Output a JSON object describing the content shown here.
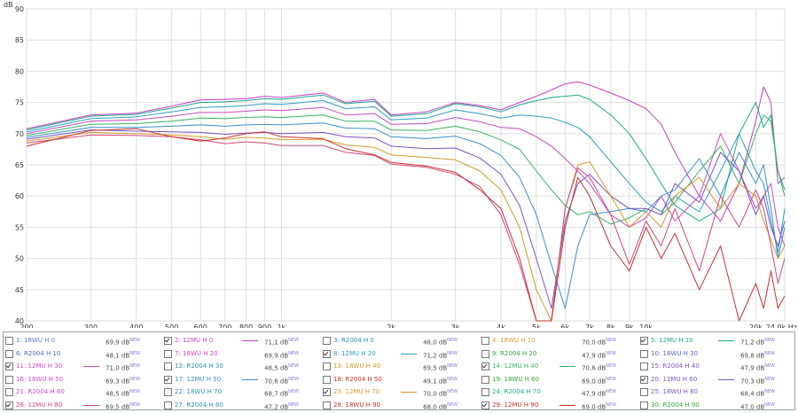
{
  "chart_data": {
    "type": "line",
    "ylabel": "dB",
    "xunit": "Hz",
    "xscale": "log",
    "xlim": [
      200,
      24000
    ],
    "ylim": [
      40,
      90
    ],
    "x_ticks": [
      {
        "value": 200,
        "label": "200"
      },
      {
        "value": 300,
        "label": "300"
      },
      {
        "value": 400,
        "label": "400"
      },
      {
        "value": 500,
        "label": "500"
      },
      {
        "value": 600,
        "label": "600"
      },
      {
        "value": 700,
        "label": "700"
      },
      {
        "value": 800,
        "label": "800"
      },
      {
        "value": 900,
        "label": "900"
      },
      {
        "value": 1000,
        "label": "1k"
      },
      {
        "value": 2000,
        "label": "2k"
      },
      {
        "value": 3000,
        "label": "3k"
      },
      {
        "value": 4000,
        "label": "4k"
      },
      {
        "value": 5000,
        "label": "5k"
      },
      {
        "value": 6000,
        "label": "6k"
      },
      {
        "value": 7000,
        "label": "7k"
      },
      {
        "value": 8000,
        "label": "8k"
      },
      {
        "value": 9000,
        "label": "9k"
      },
      {
        "value": 10000,
        "label": "10k"
      },
      {
        "value": 20000,
        "label": "20k"
      },
      {
        "value": 24000,
        "label": "24,0k Hz"
      }
    ],
    "y_ticks": [
      {
        "value": 40,
        "label": "40"
      },
      {
        "value": 45,
        "label": "45"
      },
      {
        "value": 50,
        "label": "50"
      },
      {
        "value": 55,
        "label": "55"
      },
      {
        "value": 60,
        "label": "60"
      },
      {
        "value": 65,
        "label": "65"
      },
      {
        "value": 70,
        "label": "70"
      },
      {
        "value": 75,
        "label": "75"
      },
      {
        "value": 80,
        "label": "80"
      },
      {
        "value": 85,
        "label": "85"
      },
      {
        "value": 90,
        "label": "90"
      }
    ],
    "grid": true,
    "series": [
      {
        "name": "2: 12MU H 0",
        "color": "#c53dc5",
        "x": [
          200,
          300,
          400,
          500,
          600,
          700,
          800,
          900,
          1000,
          1300,
          1500,
          1800,
          2000,
          2500,
          3000,
          3500,
          4000,
          4500,
          5000,
          5500,
          6000,
          6500,
          7000,
          8000,
          9000,
          10000,
          11000,
          12000,
          14000,
          16000,
          18000,
          20000,
          21000,
          22000,
          23000,
          24000
        ],
        "y": [
          70.8,
          73.0,
          73.3,
          74.4,
          75.4,
          75.5,
          75.6,
          76.0,
          75.8,
          76.5,
          75.0,
          75.5,
          73.0,
          73.5,
          75.0,
          74.5,
          73.8,
          75.0,
          76.0,
          77.0,
          78.0,
          78.3,
          77.8,
          76.5,
          75.3,
          74.0,
          71.5,
          67.0,
          60.0,
          56.0,
          62.0,
          72.0,
          77.5,
          75.0,
          62.0,
          63.0
        ]
      },
      {
        "name": "5: 12MU H 10",
        "color": "#1ba88a",
        "x": [
          200,
          300,
          400,
          500,
          600,
          700,
          800,
          900,
          1000,
          1300,
          1500,
          1800,
          2000,
          2500,
          3000,
          3500,
          4000,
          4500,
          5000,
          5500,
          6000,
          6500,
          7000,
          8000,
          9000,
          10000,
          11000,
          12000,
          14000,
          16000,
          18000,
          20000,
          21000,
          22000,
          23000,
          24000
        ],
        "y": [
          70.6,
          72.8,
          73.1,
          74.1,
          75.0,
          75.1,
          75.3,
          75.6,
          75.5,
          76.2,
          74.8,
          75.2,
          72.8,
          73.2,
          74.8,
          74.3,
          73.5,
          74.6,
          75.3,
          75.8,
          76.0,
          76.2,
          75.5,
          73.0,
          70.0,
          66.0,
          62.0,
          58.5,
          56.0,
          58.0,
          70.0,
          75.0,
          71.0,
          73.0,
          64.0,
          61.0
        ]
      },
      {
        "name": "8: 12MU H 20",
        "color": "#2f9cc7",
        "x": [
          200,
          300,
          400,
          500,
          600,
          700,
          800,
          900,
          1000,
          1300,
          1500,
          1800,
          2000,
          2500,
          3000,
          3500,
          4000,
          4500,
          5000,
          5500,
          6000,
          6500,
          7000,
          8000,
          9000,
          10000,
          11000,
          12000,
          14000,
          16000,
          18000,
          20000,
          21000,
          22000,
          23000,
          24000
        ],
        "y": [
          70.3,
          72.4,
          72.7,
          73.5,
          74.2,
          74.3,
          74.5,
          74.8,
          74.7,
          75.3,
          74.0,
          74.3,
          72.2,
          72.5,
          73.8,
          73.2,
          72.5,
          73.0,
          72.8,
          72.5,
          71.8,
          71.0,
          69.5,
          65.5,
          62.0,
          59.0,
          57.5,
          60.0,
          57.5,
          64.0,
          70.0,
          64.0,
          62.0,
          56.0,
          51.0,
          58.0
        ]
      },
      {
        "name": "11: 12MU H 30",
        "color": "#c94ac1",
        "x": [
          200,
          300,
          400,
          500,
          600,
          700,
          800,
          900,
          1000,
          1300,
          1500,
          1800,
          2000,
          2500,
          3000,
          3500,
          4000,
          4500,
          5000,
          5500,
          6000,
          6500,
          7000,
          8000,
          9000,
          10000,
          11000,
          12000,
          14000,
          16000,
          18000,
          20000,
          21000,
          22000,
          23000,
          24000
        ],
        "y": [
          70.0,
          72.0,
          72.2,
          72.8,
          73.4,
          73.4,
          73.6,
          73.8,
          73.7,
          74.2,
          73.0,
          73.2,
          71.5,
          71.6,
          72.6,
          71.9,
          71.0,
          70.8,
          69.5,
          68.0,
          66.0,
          64.0,
          62.0,
          57.0,
          55.0,
          56.5,
          60.0,
          56.0,
          60.0,
          70.0,
          64.0,
          58.0,
          60.0,
          62.0,
          55.0,
          52.0
        ]
      },
      {
        "name": "14: 12MU H 40",
        "color": "#35b35c",
        "x": [
          200,
          300,
          400,
          500,
          600,
          700,
          800,
          900,
          1000,
          1300,
          1500,
          1800,
          2000,
          2500,
          3000,
          3500,
          4000,
          4500,
          5000,
          5500,
          6000,
          6500,
          7000,
          8000,
          9000,
          10000,
          11000,
          12000,
          14000,
          16000,
          18000,
          20000,
          21000,
          22000,
          23000,
          24000
        ],
        "y": [
          69.7,
          71.5,
          71.6,
          72.0,
          72.5,
          72.4,
          72.6,
          72.7,
          72.6,
          73.0,
          72.0,
          72.0,
          70.6,
          70.5,
          71.2,
          70.3,
          69.0,
          67.5,
          64.0,
          61.0,
          58.5,
          57.0,
          57.5,
          55.5,
          56.5,
          58.0,
          57.0,
          59.0,
          64.0,
          68.0,
          62.0,
          70.0,
          73.0,
          72.0,
          64.0,
          60.0
        ]
      },
      {
        "name": "17: 12MU H 50",
        "color": "#3a8fcf",
        "x": [
          200,
          300,
          400,
          500,
          600,
          700,
          800,
          900,
          1000,
          1300,
          1500,
          1800,
          2000,
          2500,
          3000,
          3500,
          4000,
          4500,
          5000,
          5500,
          6000,
          6500,
          7000,
          8000,
          9000,
          10000,
          11000,
          12000,
          14000,
          16000,
          18000,
          20000,
          21000,
          22000,
          23000,
          24000
        ],
        "y": [
          69.4,
          71.0,
          71.0,
          71.2,
          71.4,
          71.2,
          71.4,
          71.5,
          71.4,
          71.7,
          70.9,
          70.8,
          69.5,
          69.2,
          69.6,
          68.4,
          66.5,
          63.0,
          57.0,
          49.0,
          42.0,
          52.0,
          57.0,
          57.5,
          58.0,
          57.5,
          60.0,
          61.0,
          66.0,
          60.0,
          67.0,
          62.0,
          65.0,
          58.0,
          50.0,
          55.0
        ]
      },
      {
        "name": "20: 12MU H 60",
        "color": "#7a52c7",
        "x": [
          200,
          300,
          400,
          500,
          600,
          700,
          800,
          900,
          1000,
          1300,
          1500,
          1800,
          2000,
          2500,
          3000,
          3500,
          4000,
          4500,
          5000,
          5500,
          6000,
          6500,
          7000,
          8000,
          9000,
          10000,
          11000,
          12000,
          14000,
          16000,
          18000,
          20000,
          21000,
          22000,
          23000,
          24000
        ],
        "y": [
          69.1,
          70.6,
          70.4,
          70.3,
          70.2,
          69.9,
          70.1,
          70.2,
          70.0,
          70.2,
          69.5,
          69.3,
          68.0,
          67.6,
          67.7,
          66.1,
          63.5,
          58.5,
          50.0,
          42.0,
          56.0,
          62.0,
          63.5,
          60.0,
          58.0,
          58.0,
          57.0,
          62.0,
          59.0,
          67.0,
          64.0,
          57.0,
          60.0,
          55.0,
          52.0,
          56.0
        ]
      },
      {
        "name": "23: 12MU H 70",
        "color": "#d19a2a",
        "x": [
          200,
          300,
          400,
          500,
          600,
          700,
          800,
          900,
          1000,
          1300,
          1500,
          1800,
          2000,
          2500,
          3000,
          3500,
          4000,
          4500,
          5000,
          5500,
          6000,
          6500,
          7000,
          8000,
          9000,
          10000,
          11000,
          12000,
          14000,
          16000,
          18000,
          20000,
          21000,
          22000,
          23000,
          24000
        ],
        "y": [
          68.8,
          70.2,
          70.0,
          69.8,
          69.5,
          69.1,
          69.4,
          69.3,
          69.0,
          69.1,
          68.2,
          67.8,
          66.6,
          66.2,
          65.8,
          64.0,
          61.0,
          55.0,
          45.0,
          38.0,
          58.0,
          65.0,
          65.5,
          60.0,
          55.0,
          57.5,
          55.0,
          60.0,
          63.0,
          58.0,
          62.0,
          60.0,
          56.0,
          53.0,
          50.0,
          52.0
        ]
      },
      {
        "name": "26: 12MU H 80",
        "color": "#d4457d",
        "x": [
          200,
          300,
          400,
          500,
          600,
          700,
          800,
          900,
          1000,
          1300,
          1500,
          1800,
          2000,
          2500,
          3000,
          3500,
          4000,
          4500,
          5000,
          5500,
          6000,
          6500,
          7000,
          8000,
          9000,
          10000,
          11000,
          12000,
          14000,
          16000,
          18000,
          20000,
          21000,
          22000,
          23000,
          24000
        ],
        "y": [
          68.5,
          69.8,
          69.7,
          69.5,
          69.0,
          68.4,
          68.7,
          68.5,
          68.1,
          68.1,
          67.0,
          66.5,
          65.1,
          64.6,
          63.5,
          61.5,
          57.0,
          49.0,
          40.0,
          38.0,
          58.0,
          64.5,
          63.0,
          57.0,
          49.0,
          56.0,
          52.0,
          58.0,
          48.0,
          60.0,
          55.0,
          61.0,
          58.0,
          52.0,
          46.0,
          50.0
        ]
      },
      {
        "name": "29: 12MU H 90",
        "color": "#c9302c",
        "x": [
          200,
          300,
          400,
          500,
          600,
          700,
          800,
          900,
          1000,
          1300,
          1500,
          1800,
          2000,
          2500,
          3000,
          3500,
          4000,
          4500,
          5000,
          5500,
          6000,
          6500,
          7000,
          8000,
          9000,
          10000,
          11000,
          12000,
          14000,
          16000,
          18000,
          20000,
          21000,
          22000,
          23000,
          24000
        ],
        "y": [
          68.0,
          70.5,
          70.8,
          69.5,
          68.8,
          69.3,
          70.0,
          70.3,
          69.5,
          69.2,
          67.6,
          66.6,
          65.4,
          64.8,
          63.8,
          61.0,
          58.0,
          50.0,
          40.0,
          38.0,
          55.0,
          63.0,
          60.0,
          52.0,
          48.0,
          55.0,
          50.0,
          54.0,
          45.0,
          52.0,
          40.0,
          46.0,
          42.0,
          48.0,
          42.0,
          44.0
        ]
      }
    ]
  },
  "legend": [
    [
      {
        "label": "1: 18WU H 0",
        "value": "69,9 dB",
        "new": "NEW",
        "checked": false,
        "color": "#5a78d6"
      },
      {
        "label": "2: 12MU H 0",
        "value": "71,1 dB",
        "new": "NEW",
        "checked": true,
        "color": "#c53dc5"
      },
      {
        "label": "3: R2004 H 0",
        "value": "48,0 dB",
        "new": "NEW",
        "checked": false,
        "color": "#2e8fa8"
      },
      {
        "label": "4: 18WU H 10",
        "value": "70,0 dB",
        "new": "NEW",
        "checked": false,
        "color": "#d19a2a"
      },
      {
        "label": "5: 12MU H 10",
        "value": "71,2 dB",
        "new": "NEW",
        "checked": true,
        "color": "#1ba88a"
      }
    ],
    [
      {
        "label": "6: R2004 H 10",
        "value": "48,1 dB",
        "new": "NEW",
        "checked": false,
        "color": "#4466c9"
      },
      {
        "label": "7: 18WU H 20",
        "value": "69,9 dB",
        "new": "NEW",
        "checked": false,
        "color": "#c94ac1"
      },
      {
        "label": "8: 12MU H 20",
        "value": "71,2 dB",
        "new": "NEW",
        "checked": true,
        "color": "#2f9cc7"
      },
      {
        "label": "9: R2004 H 20",
        "value": "47,9 dB",
        "new": "NEW",
        "checked": false,
        "color": "#36a33c"
      },
      {
        "label": "10: 18WU H 30",
        "value": "69,8 dB",
        "new": "NEW",
        "checked": false,
        "color": "#5f5fd6"
      }
    ],
    [
      {
        "label": "11: 12MU H 30",
        "value": "71,0 dB",
        "new": "NEW",
        "checked": true,
        "color": "#c94ac1"
      },
      {
        "label": "12: R2004 H 30",
        "value": "48,5 dB",
        "new": "NEW",
        "checked": false,
        "color": "#2e8fa8"
      },
      {
        "label": "13: 18WU H 40",
        "value": "69,5 dB",
        "new": "NEW",
        "checked": false,
        "color": "#d19a2a"
      },
      {
        "label": "14: 12MU H 40",
        "value": "70,8 dB",
        "new": "NEW",
        "checked": true,
        "color": "#35b35c"
      },
      {
        "label": "15: R2004 H 40",
        "value": "47,9 dB",
        "new": "NEW",
        "checked": false,
        "color": "#7a52c7"
      }
    ],
    [
      {
        "label": "16: 18WU H 50",
        "value": "69,3 dB",
        "new": "NEW",
        "checked": false,
        "color": "#c94ac1"
      },
      {
        "label": "17: 12MU H 50",
        "value": "70,6 dB",
        "new": "NEW",
        "checked": true,
        "color": "#3a8fcf"
      },
      {
        "label": "18: R2004 H 50",
        "value": "49,1 dB",
        "new": "NEW",
        "checked": false,
        "color": "#c9302c"
      },
      {
        "label": "19: 18WU H 60",
        "value": "69,0 dB",
        "new": "NEW",
        "checked": false,
        "color": "#36a33c"
      },
      {
        "label": "20: 12MU H 60",
        "value": "70,3 dB",
        "new": "NEW",
        "checked": true,
        "color": "#7a52c7"
      }
    ],
    [
      {
        "label": "21: R2004 H 60",
        "value": "48,5 dB",
        "new": "NEW",
        "checked": false,
        "color": "#c94ac1"
      },
      {
        "label": "22: 18WU H 70",
        "value": "68,7 dB",
        "new": "NEW",
        "checked": false,
        "color": "#2e8fa8"
      },
      {
        "label": "23: 12MU H 70",
        "value": "70,0 dB",
        "new": "NEW",
        "checked": true,
        "color": "#d19a2a"
      },
      {
        "label": "24: R2004 H 70",
        "value": "47,9 dB",
        "new": "NEW",
        "checked": false,
        "color": "#1ba88a"
      },
      {
        "label": "25: 18WU H 80",
        "value": "68,4 dB",
        "new": "NEW",
        "checked": false,
        "color": "#7a52c7"
      }
    ],
    [
      {
        "label": "26: 12MU H 80",
        "value": "69,5 dB",
        "new": "NEW",
        "checked": true,
        "color": "#d4457d"
      },
      {
        "label": "27: R2004 H 80",
        "value": "47,2 dB",
        "new": "NEW",
        "checked": false,
        "color": "#2e8fa8"
      },
      {
        "label": "28: 18WU H 90",
        "value": "68,0 dB",
        "new": "NEW",
        "checked": false,
        "color": "#c9302c"
      },
      {
        "label": "29: 12MU H 90",
        "value": "69,0 dB",
        "new": "NEW",
        "checked": true,
        "color": "#c9302c"
      },
      {
        "label": "30: R2004 H 90",
        "value": "47,0 dB",
        "new": "NEW",
        "checked": false,
        "color": "#36a33c"
      }
    ]
  ]
}
